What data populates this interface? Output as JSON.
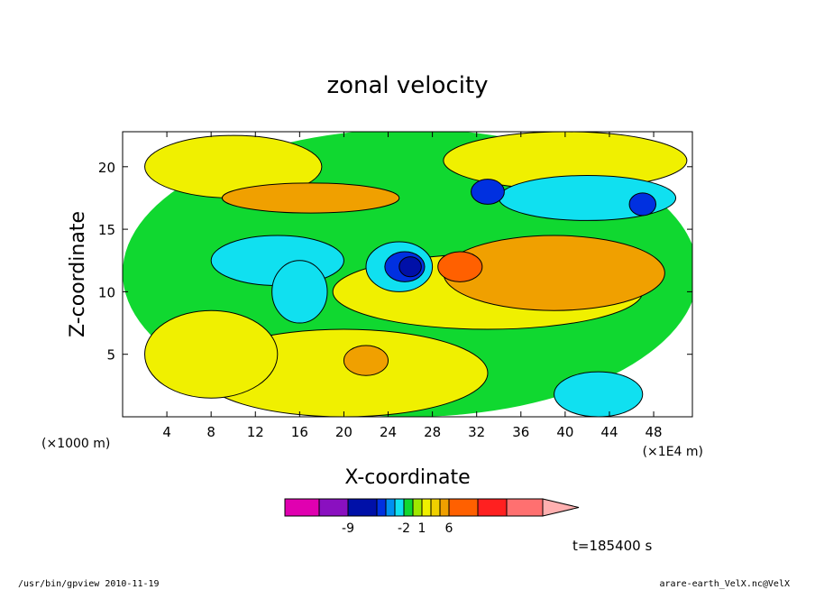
{
  "chart_data": {
    "type": "heatmap",
    "title": "zonal velocity",
    "xlabel": "X-coordinate",
    "ylabel": "Z-coordinate",
    "x_unit_left": "(×1000 m)",
    "x_unit_right": "(×1E4 m)",
    "x_ticks": [
      4,
      8,
      12,
      16,
      20,
      24,
      28,
      32,
      36,
      40,
      44,
      48
    ],
    "y_ticks": [
      5,
      10,
      15,
      20
    ],
    "xlim": [
      0,
      51.5
    ],
    "ylim": [
      0,
      22.8
    ],
    "colorbar": {
      "colors": [
        "#e000b0",
        "#8a10c0",
        "#0010a8",
        "#0030e0",
        "#0090f0",
        "#10e0f0",
        "#10d830",
        "#a0e800",
        "#f0f000",
        "#f0d000",
        "#f0a000",
        "#ff6000",
        "#ff2020",
        "#ff7070",
        "#ffb0b0"
      ],
      "labels": [
        {
          "text": "-9",
          "index": 2
        },
        {
          "text": "-2",
          "index": 6
        },
        {
          "text": "1",
          "index": 8
        },
        {
          "text": "6",
          "index": 11
        }
      ]
    },
    "regions": [
      {
        "color": "#10d830",
        "cx": 26,
        "cy": 11.5,
        "rx": 26,
        "ry": 11.5
      },
      {
        "color": "#f0f000",
        "cx": 20,
        "cy": 3.5,
        "rx": 13,
        "ry": 3.5
      },
      {
        "color": "#f0f000",
        "cx": 8,
        "cy": 5,
        "rx": 6,
        "ry": 3.5
      },
      {
        "color": "#f0f000",
        "cx": 40,
        "cy": 20.5,
        "rx": 11,
        "ry": 2.3
      },
      {
        "color": "#f0f000",
        "cx": 10,
        "cy": 20,
        "rx": 8,
        "ry": 2.5
      },
      {
        "color": "#f0f000",
        "cx": 33,
        "cy": 10,
        "rx": 14,
        "ry": 3
      },
      {
        "color": "#f0a000",
        "cx": 17,
        "cy": 17.5,
        "rx": 8,
        "ry": 1.2
      },
      {
        "color": "#f0a000",
        "cx": 39,
        "cy": 11.5,
        "rx": 10,
        "ry": 3
      },
      {
        "color": "#f0a000",
        "cx": 22,
        "cy": 4.5,
        "rx": 2,
        "ry": 1.2
      },
      {
        "color": "#10e0f0",
        "cx": 14,
        "cy": 12.5,
        "rx": 6,
        "ry": 2
      },
      {
        "color": "#10e0f0",
        "cx": 16,
        "cy": 10,
        "rx": 2.5,
        "ry": 2.5
      },
      {
        "color": "#10e0f0",
        "cx": 42,
        "cy": 17.5,
        "rx": 8,
        "ry": 1.8
      },
      {
        "color": "#10e0f0",
        "cx": 43,
        "cy": 1.8,
        "rx": 4,
        "ry": 1.8
      },
      {
        "color": "#10e0f0",
        "cx": 25,
        "cy": 12,
        "rx": 3,
        "ry": 2
      },
      {
        "color": "#0030e0",
        "cx": 25.5,
        "cy": 12,
        "rx": 1.8,
        "ry": 1.2
      },
      {
        "color": "#0010a8",
        "cx": 26,
        "cy": 12,
        "rx": 1,
        "ry": 0.8
      },
      {
        "color": "#ff6000",
        "cx": 30.5,
        "cy": 12,
        "rx": 2,
        "ry": 1.2
      },
      {
        "color": "#0030e0",
        "cx": 33,
        "cy": 18,
        "rx": 1.5,
        "ry": 1
      },
      {
        "color": "#0030e0",
        "cx": 47,
        "cy": 17,
        "rx": 1.2,
        "ry": 0.9
      }
    ]
  },
  "time_label": "t=185400 s",
  "footer_left": "/usr/bin/gpview   2010-11-19",
  "footer_right": "arare-earth_VelX.nc@VelX"
}
